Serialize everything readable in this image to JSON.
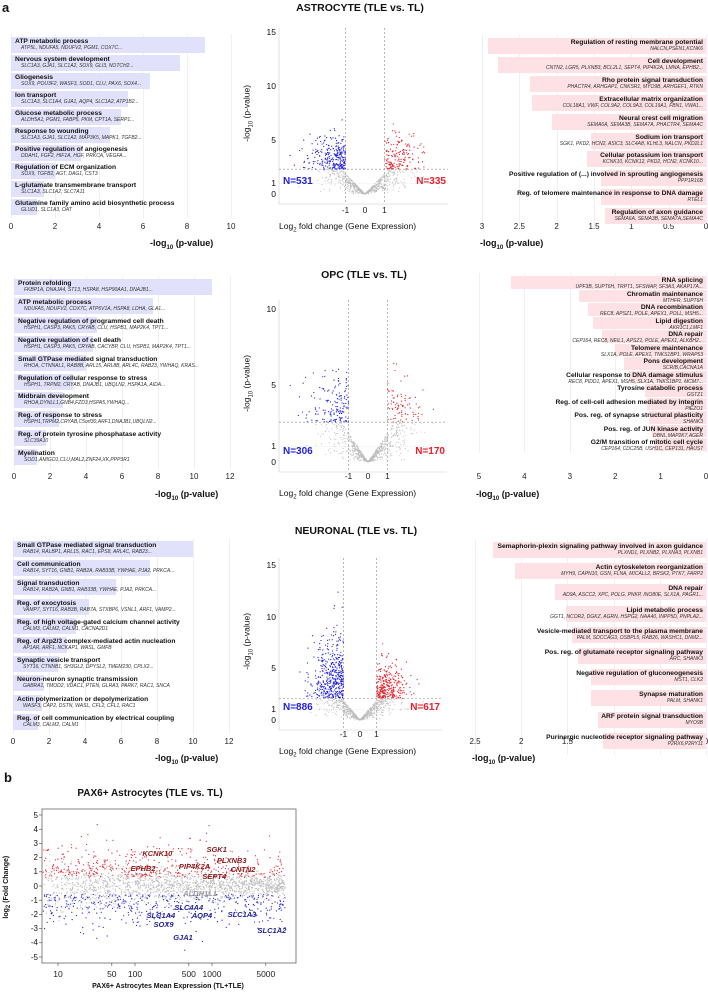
{
  "panel_labels": {
    "a": "a",
    "b": "b"
  },
  "axis_label": {
    "prefix": "-log",
    "sub": "10",
    "suffix": " (p-value)"
  },
  "volcano_xlabel": {
    "prefix": "Log",
    "sub": "2",
    "suffix": " fold change (Gene Expression)"
  },
  "volcano_ylabel": {
    "prefix": "-log",
    "sub": "10",
    "suffix": " (p-value)"
  },
  "colors": {
    "down": "#1f1fe0",
    "up": "#e8202a",
    "ns": "#bdbdbd",
    "bar_down": "#e1e1fb",
    "bar_up": "#fde1e4",
    "ma_up_label": "#8b1a1a",
    "ma_down_label": "#22229a",
    "ma_ns_label": "#9a9a9a"
  },
  "chart_data": [
    {
      "id": "astro_left",
      "type": "bar",
      "orientation": "horizontal",
      "direction": "down",
      "xlim": [
        0,
        10
      ],
      "ticks": [
        0,
        2,
        4,
        6,
        8,
        10
      ],
      "xlabel": "-log10 (p-value)",
      "terms": [
        {
          "term": "ATP metabolic process",
          "genes": "ATP5L, NDUFA5, NDUFV2, PGM1, COX7C...",
          "value": 8.8
        },
        {
          "term": "Nervous system development",
          "genes": "SLC1A3, GJA1, SLC1A2, SOX9, GLI3, NOTCH2...",
          "value": 7.7
        },
        {
          "term": "Gliogenesis",
          "genes": "SOX9, POU3F2, WASF3, SOD1, CLU, PAX6, SOX4...",
          "value": 6.3
        },
        {
          "term": "Ion transport",
          "genes": "SLC1A3, SLC1A4, GJA1, AQP4, SLC1A2, ATP1B2...",
          "value": 5.3
        },
        {
          "term": "Glucose metabolic process",
          "genes": "ALDH5A1, PGM1, FABP5, PKM, CPT1A, SERP1...",
          "value": 5.0
        },
        {
          "term": "Response to wounding",
          "genes": "SLC1A3, GJA1, SLC1A2, MAP3K5, MAPK1, TGFB2...",
          "value": 4.5
        },
        {
          "term": "Positive regulation of angiogenesis",
          "genes": "DDAH1, FGF2, HIF1A, HGF, PRKCA, VEGFA...",
          "value": 3.2
        },
        {
          "term": "Regulation of ECM organization",
          "genes": "SOX9, TGFB2, AGT, DAG1, CST3",
          "value": 2.0
        },
        {
          "term": "L-glutamate transmembrane transport",
          "genes": "SLC1A3, SLC1A2, SLC7A11",
          "value": 1.5
        },
        {
          "term": "Glutamine family amino acid biosynthetic process",
          "genes": "GLUD1, SLC1A3, OAT",
          "value": 1.2
        }
      ]
    },
    {
      "id": "astro_right",
      "type": "bar",
      "orientation": "horizontal",
      "direction": "up",
      "xlim": [
        3,
        0
      ],
      "ticks": [
        3,
        2.5,
        2,
        1.5,
        1,
        0.5,
        0
      ],
      "xlabel": "-log10 (p-value)",
      "terms": [
        {
          "term": "Regulation of resting membrane potential",
          "genes": "NALCN,PSEN1,KCNK6",
          "value": 2.92
        },
        {
          "term": "Cell development",
          "genes": "CNTN2, LGR5, PLXNB3, BCL2L1, SEPT4, PIP4K2A, LMNA, EPHB2...",
          "value": 2.78
        },
        {
          "term": "Rho protein signal transduction",
          "genes": "PHACTR4, ARHGAP1, CNKSR1, MYO9B, ARHGEF1, RTKN",
          "value": 2.36
        },
        {
          "term": "Extracellular matrix organization",
          "genes": "COL18A1, VWF, COL9A2, COL9A3, COL19A1, FBN1, VWA1...",
          "value": 2.33
        },
        {
          "term": "Neural crest cell migration",
          "genes": "SEMA6A, SEMA3B, SEMA7A, PHACTR4, SEMA4C",
          "value": 2.06
        },
        {
          "term": "Sodium ion transport",
          "genes": "SGK1, PKD2, HCN2, ASIC3, SLC4A8, KLHL3, NALCN, PKD2L1",
          "value": 1.54
        },
        {
          "term": "Cellular potassium ion transport",
          "genes": "KCNK10, KCNK12, PKD2, HCN2, KCNK10...",
          "value": 1.6
        },
        {
          "term": "Positive regulation of (...) involved in sprouting angiogenesis",
          "genes": "PPP1R16B",
          "value": 1.4
        },
        {
          "term": "Reg. of telomere maintenance in response to DNA damage",
          "genes": "RTEL1",
          "value": 1.4
        },
        {
          "term": "Regulation of axon guidance",
          "genes": "SEMA6A, SEMA3B, SEMA7A,SEMA4C",
          "value": 1.35
        }
      ]
    },
    {
      "id": "astro_volcano",
      "type": "scatter",
      "title": "ASTROCYTE (TLE vs. TL)",
      "xlim": [
        -4.4,
        4.2
      ],
      "ylim": [
        0,
        15
      ],
      "xticks": [
        "-1",
        "0",
        "1"
      ],
      "yticks": [
        "15",
        "10",
        "5",
        "1",
        "0"
      ],
      "fc_threshold": 1,
      "p_threshold": 2.3,
      "n_down": "N=531",
      "n_up": "N=335"
    },
    {
      "id": "opc_left",
      "type": "bar",
      "orientation": "horizontal",
      "direction": "down",
      "xlim": [
        0,
        12
      ],
      "ticks": [
        0,
        2,
        4,
        6,
        8,
        10,
        12
      ],
      "xlabel": "-log10 (p-value)",
      "terms": [
        {
          "term": "Protein refolding",
          "genes": "FKBP1A, DNAJA4, ST13, HSPA8, HSP90AA1, DNAJB1...",
          "value": 11.0
        },
        {
          "term": "ATP metabolic process",
          "genes": "NDUFA5, NDUFV2, COX7C, ATP6V1A, HSPA8, LDHA, GLA1...",
          "value": 7.7
        },
        {
          "term": "Negative regulation of programmed cell death",
          "genes": "HSPH1, CASP3, PAK5, CRYAB, CLU, HSPB1, MAP2K4, TPT1...",
          "value": 4.6
        },
        {
          "term": "Negative regulation of cell death",
          "genes": "HSPH1, CASP3, PAK5, CRYAB, CACYBP, CLU, HSPB1, MAP2K4, TPT1...",
          "value": 4.4
        },
        {
          "term": "Small GTPase mediated signal transduction",
          "genes": "RHOA, CTNNAL1, RAB8B, ARL15, ARL8B, ARL4C, RAB23, YWHAQ, KRAS...",
          "value": 4.0
        },
        {
          "term": "Regulation of cellular response to stress",
          "genes": "HSPH1, TRPM2, CRYAB, DNAJB1, UBQLN2, HSPA1A, AIDA...",
          "value": 3.3
        },
        {
          "term": "Midbrain development",
          "genes": "RHOA,DYNLL1,GNB4,FZD3,HSPA5,YWHAQ...",
          "value": 2.7
        },
        {
          "term": "Reg. of response to stress",
          "genes": "HSPH1,TRPM2,CRYAB,C5orf30,ARF1,DNAJB1,UBQLN2...",
          "value": 2.5
        },
        {
          "term": "Reg. of protein tyrosine phosphatase activity",
          "genes": "SLC39A10",
          "value": 1.8
        },
        {
          "term": "Myelination",
          "genes": "SOD1,AMIGO1,CLU,MAL2,ZNF24,XK,PPP3R1",
          "value": 1.3
        }
      ]
    },
    {
      "id": "opc_right",
      "type": "bar",
      "orientation": "horizontal",
      "direction": "up",
      "xlim": [
        5,
        0
      ],
      "ticks": [
        5,
        4,
        3,
        2,
        1,
        0
      ],
      "xlabel": "-log10 (p-value)",
      "terms": [
        {
          "term": "RNA splicing",
          "genes": "UPF3B, SUPT6H, TRPT1, SFSWAP, SF3A3, AKAP17A...",
          "value": 4.3
        },
        {
          "term": "Chromatin maintenance",
          "genes": "MTHFR, SUPT6H",
          "value": 2.8
        },
        {
          "term": "DNA recombination",
          "genes": "REC8, APSZ1, POLE, APEX1, POLL, MSH5...",
          "value": 2.6
        },
        {
          "term": "Lipid digestion",
          "genes": "AKR1C1,LMF1",
          "value": 2.5
        },
        {
          "term": "DNA repair",
          "genes": "CEP164, REC8, NEIL1, APSZ1, POLE, APEX1, ALKBH2...",
          "value": 2.3
        },
        {
          "term": "Telomere maintenance",
          "genes": "SLX1A, POLE, APEX1, TNKS1BP1, WRAP53",
          "value": 2.0
        },
        {
          "term": "Pons development",
          "genes": "SCRIB,CACNA1A",
          "value": 1.8
        },
        {
          "term": "Cellular response to DNA damage stimulus",
          "genes": "REC8, PIDD1, APEX1, MSH5, SLX1A, TNKS1BP1, MCM7...",
          "value": 1.7
        },
        {
          "term": "Tyrosine catabolic process",
          "genes": "GSTZ1",
          "value": 1.35
        },
        {
          "term": "Reg. of cell-cell adhesion mediated by integrin",
          "genes": "PIEZO1",
          "value": 1.3
        },
        {
          "term": "Pos. reg. of synapse structural plasticity",
          "genes": "SHANK3",
          "value": 1.25
        },
        {
          "term": "Pos. reg. of JUN kinase activity",
          "genes": "DBNL,MAP2K7,AGER",
          "value": 1.2
        },
        {
          "term": "G2/M transition of mitotic cell cycle",
          "genes": "CEP164, CDC25B, USH1C, CEP131, HAUS7",
          "value": 1.15
        }
      ]
    },
    {
      "id": "opc_volcano",
      "type": "scatter",
      "title": "OPC (TLE vs. TL)",
      "xlim": [
        -4.4,
        4.2
      ],
      "ylim": [
        0,
        10
      ],
      "xticks": [
        "-1",
        "0",
        "1"
      ],
      "yticks": [
        "10",
        "5",
        "1",
        "0"
      ],
      "fc_threshold": 1,
      "p_threshold": 2.6,
      "n_down": "N=306",
      "n_up": "N=170"
    },
    {
      "id": "neuronal_left",
      "type": "bar",
      "orientation": "horizontal",
      "direction": "down",
      "xlim": [
        0,
        12
      ],
      "ticks": [
        0,
        2,
        4,
        6,
        8,
        10,
        12
      ],
      "xlabel": "-log10 (p-value)",
      "terms": [
        {
          "term": "Small GTPase mediated signal transduction",
          "genes": "RAB14, RALBP1, ARL15, RAC1, EPS8, ARL4C, RAB23...",
          "value": 10.0
        },
        {
          "term": "Cell communication",
          "genes": "RAB14, SYT16, GNB1, RAB2A, RAB33B, YWHAE, PJA2, PRKCA...",
          "value": 7.6
        },
        {
          "term": "Signal transduction",
          "genes": "RAB14, RAB2A, GNB1, RAB33B, YWHAE, PJA2, PRKCA...",
          "value": 5.7
        },
        {
          "term": "Reg. of exocytosis",
          "genes": "VAMP7, SYT16, RAB3B, RAB7A, STXBP6, VSNL1, ARF1, VAMP2...",
          "value": 4.2
        },
        {
          "term": "Reg. of high voltage-gated calcium channel activity",
          "genes": "CALM3, CALM2, CALM1, CACNA2D1",
          "value": 3.5
        },
        {
          "term": "Reg. of Arp2/3 complex-mediated actin nucleation",
          "genes": "AP1AR, ARF1, NCKAP1, WASL, GMFB",
          "value": 3.0
        },
        {
          "term": "Synaptic vesicle transport",
          "genes": "SYT16, CTNNB1, SH3GL2, DPYSL2, TMEM230, CPLX2...",
          "value": 2.5
        },
        {
          "term": "Neuron-neuron synaptic transmission",
          "genes": "GABRA1, TMOD2, VDAC1, PTEN, GLRA3, PARK7, RAC1, SNCA",
          "value": 1.7
        },
        {
          "term": "Actin polymerization or depolymerization",
          "genes": "WASF3, CAP2, DSTN, WASL, CFL2, CFL1, RAC1",
          "value": 1.6
        },
        {
          "term": "Reg. of cell communication by electrical coupling",
          "genes": "CALM3, CALM2, CALM1",
          "value": 1.4
        }
      ]
    },
    {
      "id": "neuronal_right",
      "type": "bar",
      "orientation": "horizontal",
      "direction": "up",
      "xlim": [
        2.5,
        0
      ],
      "ticks": [
        2.5,
        2,
        1.5,
        1,
        0.5,
        0
      ],
      "xlabel": "-log10 (p-value)",
      "terms": [
        {
          "term": "Semaphorin-plexin signaling pathway involved in axon guidance",
          "genes": "PLXND1, PLXNB2, PLXNA3, PLXNB1",
          "value": 2.3
        },
        {
          "term": "Actin cytoskeleton reorganization",
          "genes": "MYH9, CAPN10, GSN, FLNA, MICALL2, BRSK2, PTK7, FARP2",
          "value": 2.07
        },
        {
          "term": "DNA repair",
          "genes": "AD9A, ASCC2, XPC, POLG, PNKP, INO80E, SLX1A, PAGR1...",
          "value": 1.63
        },
        {
          "term": "Lipid metabolic process",
          "genes": "GGT1, NCOR2, DGKZ, AGRN, HSPG2, NAA40, INPP5D, PNPLA2...",
          "value": 1.52
        },
        {
          "term": "Vesicle-mediated transport to the plasma membrane",
          "genes": "PALM, SDCCAG3, OSBPL5, RAB26, WASHC1, DNM2...",
          "value": 1.45
        },
        {
          "term": "Pos. reg. of glutamate receptor signaling pathway",
          "genes": "ARC, SHANK3",
          "value": 1.39
        },
        {
          "term": "Negative regulation of gluconeogenesis",
          "genes": "MST1, CLK2",
          "value": 1.24
        },
        {
          "term": "Synapse maturation",
          "genes": "PALM, SHANK1",
          "value": 1.24
        },
        {
          "term": "ARF protein signal transduction",
          "genes": "MYO9B",
          "value": 1.17
        },
        {
          "term": "Purinergic nucleotide receptor signaling pathway",
          "genes": "P2RX6,P2RY11",
          "value": 1.11
        }
      ]
    },
    {
      "id": "neuronal_volcano",
      "type": "scatter",
      "title": "NEURONAL (TLE vs. TL)",
      "xlim": [
        -5,
        5
      ],
      "ylim": [
        0,
        15
      ],
      "xticks": [
        "-1",
        "0",
        "1"
      ],
      "yticks": [
        "15",
        "10",
        "5",
        "1",
        "0"
      ],
      "fc_threshold": 1,
      "p_threshold": 2.1,
      "n_down": "N=886",
      "n_up": "N=617"
    },
    {
      "id": "ma_plot",
      "type": "scatter",
      "title": "PAX6+ Astrocytes (TLE vs. TL)",
      "xlabel": "PAX6+ Astrocytes Mean Expression (TL+TLE)",
      "ylabel": {
        "prefix": "log",
        "sub": "2",
        "suffix": " (Fold Change)"
      },
      "xscale": "log",
      "xlim": [
        5,
        12000
      ],
      "ylim": [
        -5.4,
        5.4
      ],
      "xticks": [
        {
          "v": 10,
          "t": "10"
        },
        {
          "v": 50,
          "t": "50"
        },
        {
          "v": 100,
          "t": "100"
        },
        {
          "v": 500,
          "t": "500"
        },
        {
          "v": 1000,
          "t": "1000"
        },
        {
          "v": 5000,
          "t": "5000"
        }
      ],
      "yticks": [
        5,
        4,
        3,
        2,
        1,
        0,
        -1,
        -2,
        -3,
        -4,
        -5
      ],
      "genes": [
        {
          "name": "KCNK10",
          "x": 195,
          "y": 2.3,
          "group": "up"
        },
        {
          "name": "SGK1",
          "x": 1150,
          "y": 2.6,
          "group": "up"
        },
        {
          "name": "PLXNB3",
          "x": 1600,
          "y": 1.75,
          "group": "up"
        },
        {
          "name": "EPHB2",
          "x": 127,
          "y": 1.25,
          "group": "up"
        },
        {
          "name": "PIP4K2A",
          "x": 630,
          "y": 1.35,
          "group": "up"
        },
        {
          "name": "CNTN2",
          "x": 2240,
          "y": 1.2,
          "group": "up"
        },
        {
          "name": "SEPT4",
          "x": 1070,
          "y": 0.8,
          "group": "up"
        },
        {
          "name": "ALDH1L1",
          "x": 700,
          "y": -0.5,
          "group": "ns"
        },
        {
          "name": "SLC4A4",
          "x": 470,
          "y": -1.6,
          "group": "down"
        },
        {
          "name": "SLC1A4",
          "x": 230,
          "y": -2.0,
          "group": "down"
        },
        {
          "name": "AQP4",
          "x": 740,
          "y": -2.1,
          "group": "down"
        },
        {
          "name": "SLC1A3",
          "x": 2450,
          "y": -2.0,
          "group": "down"
        },
        {
          "name": "SOX9",
          "x": 235,
          "y": -2.7,
          "group": "down"
        },
        {
          "name": "SLC1A2",
          "x": 6000,
          "y": -3.1,
          "group": "down"
        },
        {
          "name": "GJA1",
          "x": 420,
          "y": -3.6,
          "group": "down"
        }
      ]
    }
  ]
}
